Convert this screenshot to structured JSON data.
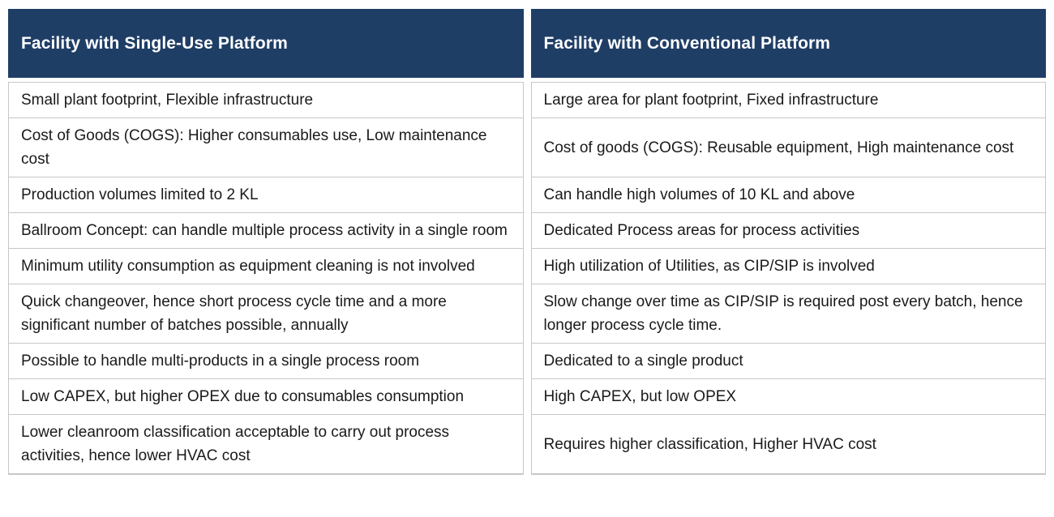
{
  "table": {
    "headers": [
      "Facility with Single-Use Platform",
      "Facility with Conventional Platform"
    ],
    "rows": [
      [
        "Small plant footprint, Flexible infrastructure",
        "Large area for plant footprint, Fixed infrastructure"
      ],
      [
        "Cost of Goods (COGS): Higher consumables use, Low maintenance cost",
        "Cost of goods (COGS): Reusable equipment, High maintenance cost"
      ],
      [
        "Production volumes limited to 2 KL",
        "Can handle high volumes of 10 KL and above"
      ],
      [
        "Ballroom Concept: can handle multiple process activity in a single room",
        "Dedicated Process areas for process activities"
      ],
      [
        "Minimum utility consumption as equipment cleaning is not involved",
        "High utilization of Utilities, as CIP/SIP is involved"
      ],
      [
        "Quick changeover, hence short process cycle time and a more significant number of batches possible,  annually",
        "Slow change over time as CIP/SIP is required post every batch, hence longer process cycle time."
      ],
      [
        "Possible to handle multi-products in a single process room",
        "Dedicated to a single product"
      ],
      [
        "Low CAPEX, but higher OPEX due to consumables consumption",
        "High CAPEX, but low OPEX"
      ],
      [
        "Lower cleanroom classification acceptable to carry out process activities, hence lower HVAC cost",
        "Requires higher classification, Higher HVAC cost"
      ]
    ],
    "colors": {
      "header_background": "#1f3e66",
      "header_text": "#ffffff",
      "body_text": "#1a1a1a",
      "border": "#c7c7c7",
      "page_background": "#ffffff"
    }
  },
  "chart_data": {
    "type": "table",
    "columns": [
      "Facility with Single-Use Platform",
      "Facility with Conventional Platform"
    ],
    "rows": [
      [
        "Small plant footprint, Flexible infrastructure",
        "Large area for plant footprint, Fixed infrastructure"
      ],
      [
        "Cost of Goods (COGS): Higher consumables use, Low maintenance cost",
        "Cost of goods (COGS): Reusable equipment, High maintenance cost"
      ],
      [
        "Production volumes limited to 2 KL",
        "Can handle high volumes of 10 KL and above"
      ],
      [
        "Ballroom Concept: can handle multiple process activity in a single room",
        "Dedicated Process areas for process activities"
      ],
      [
        "Minimum utility consumption as equipment cleaning is not involved",
        "High utilization of Utilities, as CIP/SIP is involved"
      ],
      [
        "Quick changeover, hence short process cycle time and a more significant number of batches possible,  annually",
        "Slow change over time as CIP/SIP is required post every batch, hence longer process cycle time."
      ],
      [
        "Possible to handle multi-products in a single process room",
        "Dedicated to a single product"
      ],
      [
        "Low CAPEX, but higher OPEX due to consumables consumption",
        "High CAPEX, but low OPEX"
      ],
      [
        "Lower cleanroom classification acceptable to carry out process activities, hence lower HVAC cost",
        "Requires higher classification, Higher HVAC cost"
      ]
    ]
  }
}
